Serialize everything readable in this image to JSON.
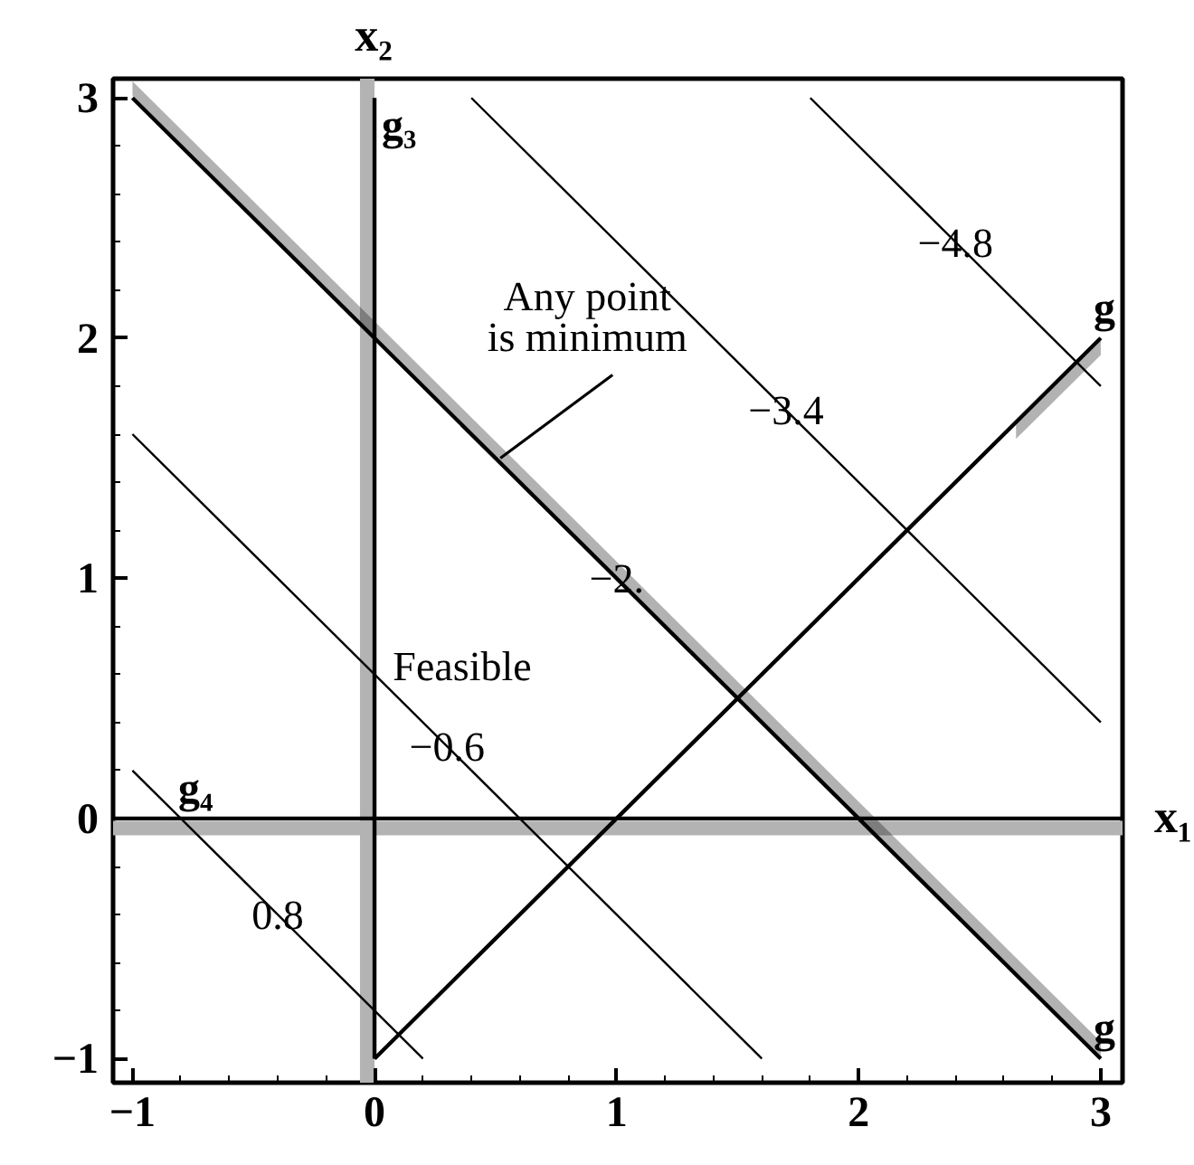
{
  "chart_data": {
    "type": "line",
    "xlabel": "x₁",
    "ylabel": "x₂",
    "xlim": [
      -1.08,
      3.09
    ],
    "ylim": [
      -1.1,
      3.08
    ],
    "xticks": [
      {
        "value": -1,
        "label": "−1"
      },
      0,
      1,
      2,
      3
    ],
    "yticks": [
      {
        "value": -1,
        "label": "−1"
      },
      0,
      1,
      2,
      3
    ],
    "series": [
      {
        "color": "#000000",
        "x": [
          -1,
          0.2
        ],
        "values": [
          0.2,
          -1
        ]
      },
      {
        "color": "#000000",
        "x": [
          -1,
          1.6
        ],
        "values": [
          1.6,
          -1
        ]
      },
      {
        "color": "#000000",
        "x": [
          0.4,
          3
        ],
        "values": [
          3,
          0.4
        ]
      },
      {
        "color": "#000000",
        "x": [
          1.8,
          3
        ],
        "values": [
          3,
          1.8
        ]
      },
      {
        "name": "g",
        "color": "#000000",
        "x": [
          -1,
          3
        ],
        "values": [
          3,
          -1
        ],
        "lower": [
          3.01,
          -0.99
        ],
        "upper": [
          3.07,
          -0.93
        ]
      },
      {
        "name": "g",
        "color": "#000000",
        "x": [
          0,
          2.65,
          3
        ],
        "values": [
          -1,
          1.65,
          2
        ],
        "lower": [
          null,
          1.58,
          1.93
        ],
        "upper": [
          null,
          1.64,
          1.99
        ]
      },
      {
        "name": "g₃",
        "color": "#000000",
        "x": [
          0,
          0
        ],
        "values": [
          -1,
          3
        ]
      },
      {
        "name": "g₄",
        "color": "#000000",
        "x": [
          3.09,
          -1.08
        ],
        "values": [
          0,
          0
        ]
      }
    ],
    "bands": [
      {
        "axis": "x",
        "from": -0.06,
        "to": 0,
        "color": "#b3b3b3"
      },
      {
        "axis": "y",
        "from": -0.07,
        "to": -0.01,
        "color": "#b3b3b3"
      }
    ],
    "annotations": [
      {
        "text": "Any point\nis minimum",
        "x": 0.52,
        "y": 1.5
      },
      "Feasible",
      {
        "text": "0.8",
        "x": -0.4,
        "y": -0.4
      },
      {
        "text": "−0.6",
        "x": 0.3,
        "y": 0.3
      },
      {
        "text": "−2.",
        "x": 1,
        "y": 1
      },
      {
        "text": "−3.4",
        "x": 1.7,
        "y": 1.7
      },
      {
        "text": "−4.8",
        "x": 2.4,
        "y": 2.4
      }
    ]
  }
}
